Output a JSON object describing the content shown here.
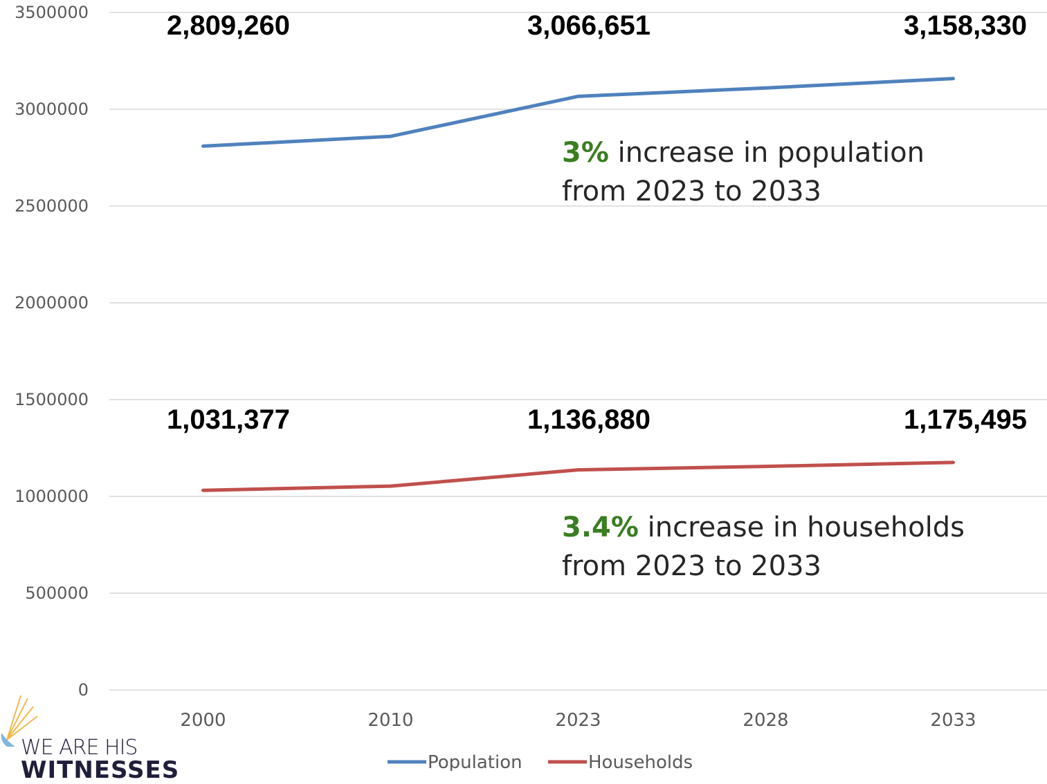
{
  "chart_data": {
    "type": "line",
    "categories": [
      "2000",
      "2010",
      "2023",
      "2028",
      "2033"
    ],
    "series": [
      {
        "name": "Population",
        "color": "#4f81bd",
        "values": [
          2809260,
          2860000,
          3066651,
          3110000,
          3158330
        ]
      },
      {
        "name": "Households",
        "color": "#c0504d",
        "values": [
          1031377,
          1053000,
          1136880,
          1155000,
          1175495
        ]
      }
    ],
    "ylim": [
      0,
      3500000
    ],
    "yticks": [
      "0",
      "500000",
      "1000000",
      "1500000",
      "2000000",
      "2500000",
      "3000000",
      "3500000"
    ],
    "grid": true,
    "legend": "bottom",
    "data_labels": {
      "population": [
        "2,809,260",
        "3,066,651",
        "3,158,330"
      ],
      "households": [
        "1,031,377",
        "1,136,880",
        "1,175,495"
      ]
    }
  },
  "annotations": {
    "population": {
      "pct": "3%",
      "line1": " increase in population",
      "line2": "from 2023 to 2033"
    },
    "households": {
      "pct": "3.4%",
      "line1": " increase in households",
      "line2": "from 2023 to 2033"
    }
  },
  "logo": {
    "line1": "WE ARE HIS",
    "line2": "WITNESSES"
  }
}
